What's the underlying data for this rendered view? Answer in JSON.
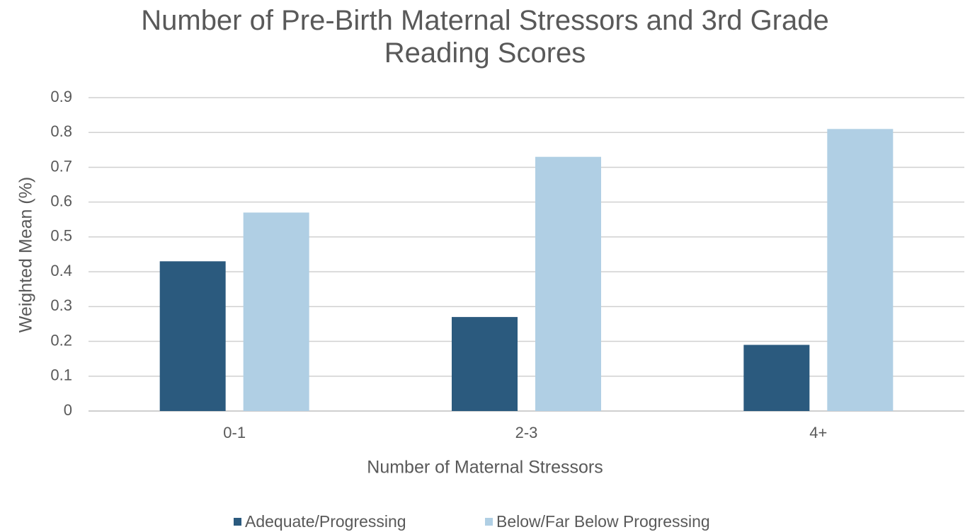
{
  "chart_data": {
    "type": "bar",
    "title": "Number of Pre-Birth Maternal Stressors and 3rd Grade Reading Scores",
    "x_label": "Number of Maternal Stressors",
    "y_label": "Weighted Mean (%)",
    "categories": [
      "0-1",
      "2-3",
      "4+"
    ],
    "series": [
      {
        "name": "Adequate/Progressing",
        "color": "#2b5a7e",
        "values": [
          0.43,
          0.27,
          0.19
        ]
      },
      {
        "name": "Below/Far Below Progressing",
        "color": "#b0cfe4",
        "values": [
          0.57,
          0.73,
          0.81
        ]
      }
    ],
    "ylim": [
      0,
      0.9
    ],
    "yticks": [
      0,
      0.1,
      0.2,
      0.3,
      0.4,
      0.5,
      0.6,
      0.7,
      0.8,
      0.9
    ],
    "grid": true,
    "legend": "bottom"
  }
}
